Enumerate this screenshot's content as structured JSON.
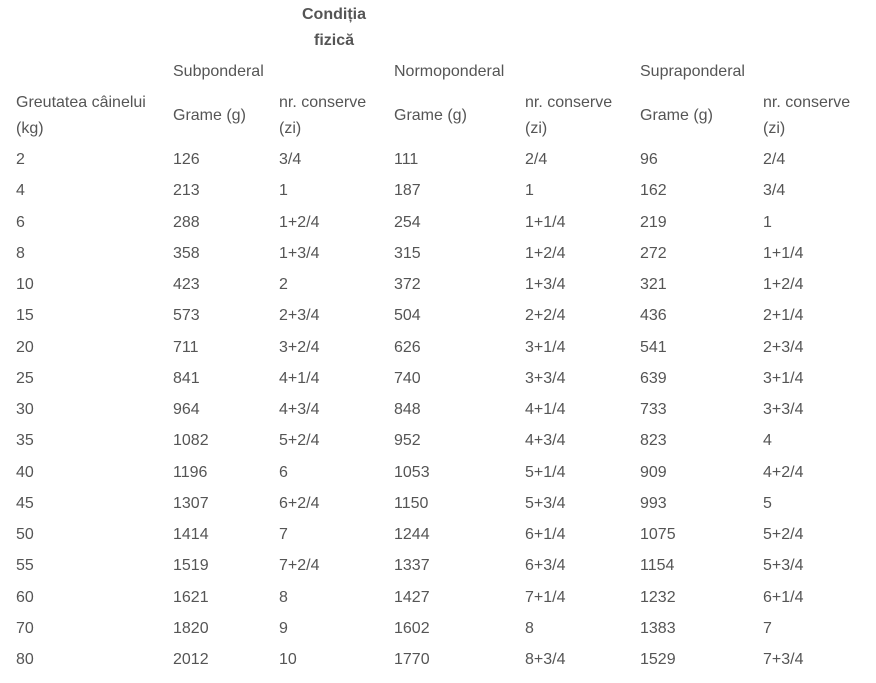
{
  "header": {
    "title": "Condiția fizică"
  },
  "table": {
    "groups": [
      "Subponderal",
      "Normoponderal",
      "Supraponderal"
    ],
    "columns": [
      "Greutatea câinelui (kg)",
      "Grame (g)",
      "nr. conserve (zi)",
      "Grame (g)",
      "nr. conserve (zi)",
      "Grame (g)",
      "nr. conserve (zi)"
    ],
    "rows": [
      [
        "2",
        "126",
        "3/4",
        "111",
        "2/4",
        "96",
        "2/4"
      ],
      [
        "4",
        "213",
        "1",
        "187",
        "1",
        "162",
        "3/4"
      ],
      [
        "6",
        "288",
        "1+2/4",
        "254",
        "1+1/4",
        "219",
        "1"
      ],
      [
        "8",
        "358",
        "1+3/4",
        "315",
        "1+2/4",
        "272",
        "1+1/4"
      ],
      [
        "10",
        "423",
        "2",
        "372",
        "1+3/4",
        "321",
        "1+2/4"
      ],
      [
        "15",
        "573",
        "2+3/4",
        "504",
        "2+2/4",
        "436",
        "2+1/4"
      ],
      [
        "20",
        "711",
        "3+2/4",
        "626",
        "3+1/4",
        "541",
        "2+3/4"
      ],
      [
        "25",
        "841",
        "4+1/4",
        "740",
        "3+3/4",
        "639",
        "3+1/4"
      ],
      [
        "30",
        "964",
        "4+3/4",
        "848",
        "4+1/4",
        "733",
        "3+3/4"
      ],
      [
        "35",
        "1082",
        "5+2/4",
        "952",
        "4+3/4",
        "823",
        "4"
      ],
      [
        "40",
        "1196",
        "6",
        "1053",
        "5+1/4",
        "909",
        "4+2/4"
      ],
      [
        "45",
        "1307",
        "6+2/4",
        "1150",
        "5+3/4",
        "993",
        "5"
      ],
      [
        "50",
        "1414",
        "7",
        "1244",
        "6+1/4",
        "1075",
        "5+2/4"
      ],
      [
        "55",
        "1519",
        "7+2/4",
        "1337",
        "6+3/4",
        "1154",
        "5+3/4"
      ],
      [
        "60",
        "1621",
        "8",
        "1427",
        "7+1/4",
        "1232",
        "6+1/4"
      ],
      [
        "70",
        "1820",
        "9",
        "1602",
        "8",
        "1383",
        "7"
      ],
      [
        "80",
        "2012",
        "10",
        "1770",
        "8+3/4",
        "1529",
        "7+3/4"
      ]
    ]
  }
}
